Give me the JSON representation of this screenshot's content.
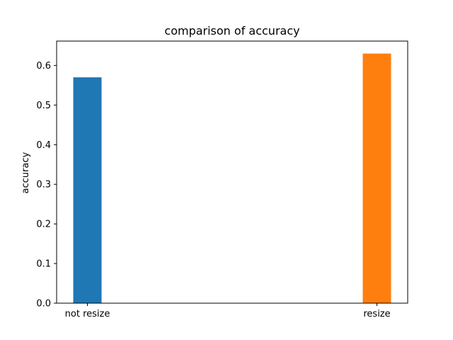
{
  "chart_data": {
    "type": "bar",
    "title": "comparison of accuracy",
    "xlabel": "",
    "ylabel": "accuracy",
    "categories": [
      "not resize",
      "resize"
    ],
    "values": [
      0.57,
      0.63
    ],
    "colors": [
      "#1f77b4",
      "#ff7f0e"
    ],
    "ylim": [
      0,
      0.6615
    ],
    "yticks": [
      0.0,
      0.1,
      0.2,
      0.3,
      0.4,
      0.5,
      0.6
    ],
    "ytick_labels": [
      "0.0",
      "0.1",
      "0.2",
      "0.3",
      "0.4",
      "0.5",
      "0.6"
    ],
    "grid": false,
    "legend": "none"
  }
}
